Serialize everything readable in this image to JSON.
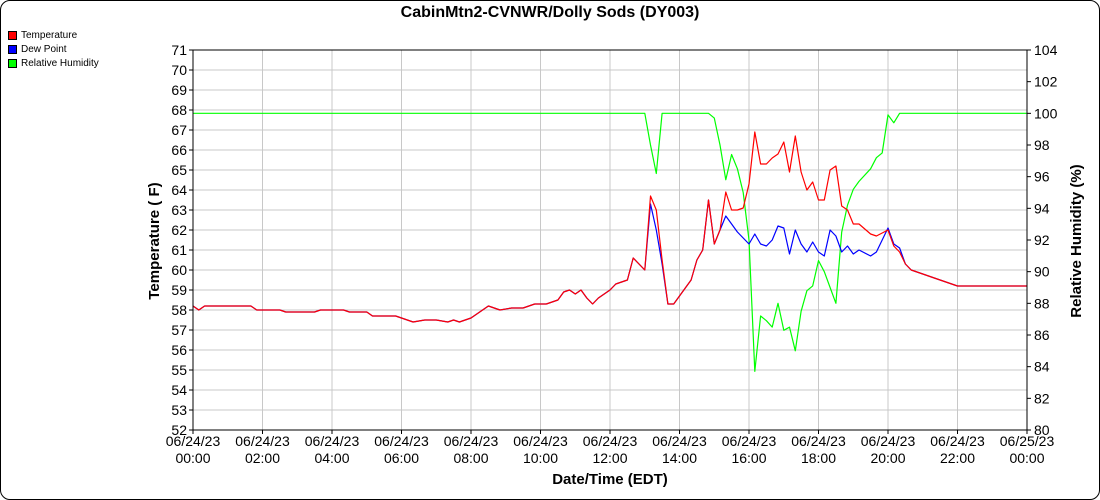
{
  "chart_data": {
    "type": "line",
    "title": "CabinMtn2-CVNWR/Dolly Sods (DY003)",
    "xlabel": "Date/Time (EDT)",
    "ylabel": "Temperature ( F)",
    "y2label": "Relative Humidity (%)",
    "ylim": [
      52,
      71
    ],
    "y2lim": [
      80,
      104
    ],
    "xlim": [
      "06/24/23 00:00",
      "06/25/23 00:00"
    ],
    "grid": true,
    "legend_position": "top-left",
    "x_ticks": [
      [
        "06/24/23",
        "00:00"
      ],
      [
        "06/24/23",
        "02:00"
      ],
      [
        "06/24/23",
        "04:00"
      ],
      [
        "06/24/23",
        "06:00"
      ],
      [
        "06/24/23",
        "08:00"
      ],
      [
        "06/24/23",
        "10:00"
      ],
      [
        "06/24/23",
        "12:00"
      ],
      [
        "06/24/23",
        "14:00"
      ],
      [
        "06/24/23",
        "16:00"
      ],
      [
        "06/24/23",
        "18:00"
      ],
      [
        "06/24/23",
        "20:00"
      ],
      [
        "06/24/23",
        "22:00"
      ],
      [
        "06/25/23",
        "00:00"
      ]
    ],
    "y_ticks": [
      52,
      53,
      54,
      55,
      56,
      57,
      58,
      59,
      60,
      61,
      62,
      63,
      64,
      65,
      66,
      67,
      68,
      69,
      70,
      71
    ],
    "y2_ticks": [
      80,
      82,
      84,
      86,
      88,
      90,
      92,
      94,
      96,
      98,
      100,
      102,
      104
    ],
    "series": [
      {
        "name": "Temperature",
        "color": "#ff0000",
        "axis": "left",
        "points": [
          [
            "06/24/23 00:00",
            58.2
          ],
          [
            "06/24/23 00:10",
            58.0
          ],
          [
            "06/24/23 00:20",
            58.2
          ],
          [
            "06/24/23 01:00",
            58.2
          ],
          [
            "06/24/23 01:40",
            58.2
          ],
          [
            "06/24/23 01:50",
            58.0
          ],
          [
            "06/24/23 02:30",
            58.0
          ],
          [
            "06/24/23 02:40",
            57.9
          ],
          [
            "06/24/23 03:30",
            57.9
          ],
          [
            "06/24/23 03:40",
            58.0
          ],
          [
            "06/24/23 04:20",
            58.0
          ],
          [
            "06/24/23 04:30",
            57.9
          ],
          [
            "06/24/23 05:00",
            57.9
          ],
          [
            "06/24/23 05:10",
            57.7
          ],
          [
            "06/24/23 05:50",
            57.7
          ],
          [
            "06/24/23 06:00",
            57.6
          ],
          [
            "06/24/23 06:20",
            57.4
          ],
          [
            "06/24/23 06:40",
            57.5
          ],
          [
            "06/24/23 07:00",
            57.5
          ],
          [
            "06/24/23 07:20",
            57.4
          ],
          [
            "06/24/23 07:30",
            57.5
          ],
          [
            "06/24/23 07:40",
            57.4
          ],
          [
            "06/24/23 08:00",
            57.6
          ],
          [
            "06/24/23 08:20",
            58.0
          ],
          [
            "06/24/23 08:30",
            58.2
          ],
          [
            "06/24/23 08:50",
            58.0
          ],
          [
            "06/24/23 09:10",
            58.1
          ],
          [
            "06/24/23 09:30",
            58.1
          ],
          [
            "06/24/23 09:50",
            58.3
          ],
          [
            "06/24/23 10:10",
            58.3
          ],
          [
            "06/24/23 10:30",
            58.5
          ],
          [
            "06/24/23 10:40",
            58.9
          ],
          [
            "06/24/23 10:50",
            59.0
          ],
          [
            "06/24/23 11:00",
            58.8
          ],
          [
            "06/24/23 11:10",
            59.0
          ],
          [
            "06/24/23 11:20",
            58.6
          ],
          [
            "06/24/23 11:30",
            58.3
          ],
          [
            "06/24/23 11:40",
            58.6
          ],
          [
            "06/24/23 12:00",
            59.0
          ],
          [
            "06/24/23 12:10",
            59.3
          ],
          [
            "06/24/23 12:30",
            59.5
          ],
          [
            "06/24/23 12:40",
            60.6
          ],
          [
            "06/24/23 13:00",
            60.0
          ],
          [
            "06/24/23 13:10",
            63.7
          ],
          [
            "06/24/23 13:20",
            63.0
          ],
          [
            "06/24/23 13:30",
            60.5
          ],
          [
            "06/24/23 13:40",
            58.3
          ],
          [
            "06/24/23 13:50",
            58.3
          ],
          [
            "06/24/23 14:00",
            58.7
          ],
          [
            "06/24/23 14:10",
            59.1
          ],
          [
            "06/24/23 14:20",
            59.5
          ],
          [
            "06/24/23 14:30",
            60.5
          ],
          [
            "06/24/23 14:40",
            61.0
          ],
          [
            "06/24/23 14:50",
            63.5
          ],
          [
            "06/24/23 15:00",
            61.3
          ],
          [
            "06/24/23 15:10",
            62.0
          ],
          [
            "06/24/23 15:20",
            63.9
          ],
          [
            "06/24/23 15:30",
            63.0
          ],
          [
            "06/24/23 15:40",
            63.0
          ],
          [
            "06/24/23 15:50",
            63.1
          ],
          [
            "06/24/23 16:00",
            64.3
          ],
          [
            "06/24/23 16:10",
            66.9
          ],
          [
            "06/24/23 16:20",
            65.3
          ],
          [
            "06/24/23 16:30",
            65.3
          ],
          [
            "06/24/23 16:40",
            65.6
          ],
          [
            "06/24/23 16:50",
            65.8
          ],
          [
            "06/24/23 17:00",
            66.4
          ],
          [
            "06/24/23 17:10",
            64.9
          ],
          [
            "06/24/23 17:20",
            66.7
          ],
          [
            "06/24/23 17:30",
            64.9
          ],
          [
            "06/24/23 17:40",
            64.0
          ],
          [
            "06/24/23 17:50",
            64.4
          ],
          [
            "06/24/23 18:00",
            63.5
          ],
          [
            "06/24/23 18:10",
            63.5
          ],
          [
            "06/24/23 18:20",
            65.0
          ],
          [
            "06/24/23 18:30",
            65.2
          ],
          [
            "06/24/23 18:40",
            63.2
          ],
          [
            "06/24/23 18:50",
            63.0
          ],
          [
            "06/24/23 19:00",
            62.3
          ],
          [
            "06/24/23 19:10",
            62.3
          ],
          [
            "06/24/23 19:30",
            61.8
          ],
          [
            "06/24/23 19:40",
            61.7
          ],
          [
            "06/24/23 20:00",
            62.0
          ],
          [
            "06/24/23 20:10",
            61.2
          ],
          [
            "06/24/23 20:20",
            60.9
          ],
          [
            "06/24/23 20:30",
            60.3
          ],
          [
            "06/24/23 20:40",
            60.0
          ],
          [
            "06/24/23 21:00",
            59.8
          ],
          [
            "06/24/23 21:20",
            59.6
          ],
          [
            "06/24/23 21:40",
            59.4
          ],
          [
            "06/24/23 22:00",
            59.2
          ],
          [
            "06/25/23 00:00",
            59.2
          ]
        ]
      },
      {
        "name": "Dew Point",
        "color": "#0000ff",
        "axis": "left",
        "points": [
          [
            "06/24/23 00:00",
            58.2
          ],
          [
            "06/24/23 00:10",
            58.0
          ],
          [
            "06/24/23 00:20",
            58.2
          ],
          [
            "06/24/23 01:00",
            58.2
          ],
          [
            "06/24/23 01:40",
            58.2
          ],
          [
            "06/24/23 01:50",
            58.0
          ],
          [
            "06/24/23 02:30",
            58.0
          ],
          [
            "06/24/23 02:40",
            57.9
          ],
          [
            "06/24/23 03:30",
            57.9
          ],
          [
            "06/24/23 03:40",
            58.0
          ],
          [
            "06/24/23 04:20",
            58.0
          ],
          [
            "06/24/23 04:30",
            57.9
          ],
          [
            "06/24/23 05:00",
            57.9
          ],
          [
            "06/24/23 05:10",
            57.7
          ],
          [
            "06/24/23 05:50",
            57.7
          ],
          [
            "06/24/23 06:00",
            57.6
          ],
          [
            "06/24/23 06:20",
            57.4
          ],
          [
            "06/24/23 06:40",
            57.5
          ],
          [
            "06/24/23 07:00",
            57.5
          ],
          [
            "06/24/23 07:20",
            57.4
          ],
          [
            "06/24/23 07:30",
            57.5
          ],
          [
            "06/24/23 07:40",
            57.4
          ],
          [
            "06/24/23 08:00",
            57.6
          ],
          [
            "06/24/23 08:20",
            58.0
          ],
          [
            "06/24/23 08:30",
            58.2
          ],
          [
            "06/24/23 08:50",
            58.0
          ],
          [
            "06/24/23 09:10",
            58.1
          ],
          [
            "06/24/23 09:30",
            58.1
          ],
          [
            "06/24/23 09:50",
            58.3
          ],
          [
            "06/24/23 10:10",
            58.3
          ],
          [
            "06/24/23 10:30",
            58.5
          ],
          [
            "06/24/23 10:40",
            58.9
          ],
          [
            "06/24/23 10:50",
            59.0
          ],
          [
            "06/24/23 11:00",
            58.8
          ],
          [
            "06/24/23 11:10",
            59.0
          ],
          [
            "06/24/23 11:20",
            58.6
          ],
          [
            "06/24/23 11:30",
            58.3
          ],
          [
            "06/24/23 11:40",
            58.6
          ],
          [
            "06/24/23 12:00",
            59.0
          ],
          [
            "06/24/23 12:10",
            59.3
          ],
          [
            "06/24/23 12:30",
            59.5
          ],
          [
            "06/24/23 12:40",
            60.6
          ],
          [
            "06/24/23 13:00",
            60.0
          ],
          [
            "06/24/23 13:10",
            63.3
          ],
          [
            "06/24/23 13:20",
            62.0
          ],
          [
            "06/24/23 13:30",
            60.3
          ],
          [
            "06/24/23 13:40",
            58.3
          ],
          [
            "06/24/23 13:50",
            58.3
          ],
          [
            "06/24/23 14:00",
            58.7
          ],
          [
            "06/24/23 14:10",
            59.1
          ],
          [
            "06/24/23 14:20",
            59.5
          ],
          [
            "06/24/23 14:30",
            60.5
          ],
          [
            "06/24/23 14:40",
            61.0
          ],
          [
            "06/24/23 14:50",
            63.5
          ],
          [
            "06/24/23 15:00",
            61.3
          ],
          [
            "06/24/23 15:10",
            62.0
          ],
          [
            "06/24/23 15:20",
            62.7
          ],
          [
            "06/24/23 15:30",
            62.3
          ],
          [
            "06/24/23 15:40",
            61.9
          ],
          [
            "06/24/23 15:50",
            61.6
          ],
          [
            "06/24/23 16:00",
            61.3
          ],
          [
            "06/24/23 16:10",
            61.8
          ],
          [
            "06/24/23 16:20",
            61.3
          ],
          [
            "06/24/23 16:30",
            61.2
          ],
          [
            "06/24/23 16:40",
            61.5
          ],
          [
            "06/24/23 16:50",
            62.2
          ],
          [
            "06/24/23 17:00",
            62.1
          ],
          [
            "06/24/23 17:10",
            60.8
          ],
          [
            "06/24/23 17:20",
            62.0
          ],
          [
            "06/24/23 17:30",
            61.3
          ],
          [
            "06/24/23 17:40",
            60.9
          ],
          [
            "06/24/23 17:50",
            61.4
          ],
          [
            "06/24/23 18:00",
            60.9
          ],
          [
            "06/24/23 18:10",
            60.7
          ],
          [
            "06/24/23 18:20",
            62.0
          ],
          [
            "06/24/23 18:30",
            61.7
          ],
          [
            "06/24/23 18:40",
            60.9
          ],
          [
            "06/24/23 18:50",
            61.2
          ],
          [
            "06/24/23 19:00",
            60.8
          ],
          [
            "06/24/23 19:10",
            61.0
          ],
          [
            "06/24/23 19:30",
            60.7
          ],
          [
            "06/24/23 19:40",
            60.9
          ],
          [
            "06/24/23 20:00",
            62.1
          ],
          [
            "06/24/23 20:10",
            61.3
          ],
          [
            "06/24/23 20:20",
            61.1
          ],
          [
            "06/24/23 20:30",
            60.3
          ],
          [
            "06/24/23 20:40",
            60.0
          ],
          [
            "06/24/23 21:00",
            59.8
          ],
          [
            "06/24/23 21:20",
            59.6
          ],
          [
            "06/24/23 21:40",
            59.4
          ],
          [
            "06/24/23 22:00",
            59.2
          ],
          [
            "06/25/23 00:00",
            59.2
          ]
        ]
      },
      {
        "name": "Relative Humidity",
        "color": "#00ff00",
        "axis": "right",
        "points": [
          [
            "06/24/23 00:00",
            100
          ],
          [
            "06/24/23 13:00",
            100
          ],
          [
            "06/24/23 13:10",
            98
          ],
          [
            "06/24/23 13:20",
            96.2
          ],
          [
            "06/24/23 13:30",
            100
          ],
          [
            "06/24/23 14:50",
            100
          ],
          [
            "06/24/23 15:00",
            99.7
          ],
          [
            "06/24/23 15:10",
            98
          ],
          [
            "06/24/23 15:20",
            95.8
          ],
          [
            "06/24/23 15:30",
            97.4
          ],
          [
            "06/24/23 15:40",
            96.5
          ],
          [
            "06/24/23 15:50",
            95
          ],
          [
            "06/24/23 16:00",
            92
          ],
          [
            "06/24/23 16:10",
            83.7
          ],
          [
            "06/24/23 16:20",
            87.2
          ],
          [
            "06/24/23 16:30",
            86.9
          ],
          [
            "06/24/23 16:40",
            86.5
          ],
          [
            "06/24/23 16:50",
            88
          ],
          [
            "06/24/23 17:00",
            86.3
          ],
          [
            "06/24/23 17:10",
            86.5
          ],
          [
            "06/24/23 17:20",
            85
          ],
          [
            "06/24/23 17:30",
            87.5
          ],
          [
            "06/24/23 17:40",
            88.8
          ],
          [
            "06/24/23 17:50",
            89.1
          ],
          [
            "06/24/23 18:00",
            90.7
          ],
          [
            "06/24/23 18:10",
            90
          ],
          [
            "06/24/23 18:20",
            89
          ],
          [
            "06/24/23 18:30",
            88
          ],
          [
            "06/24/23 18:40",
            92.5
          ],
          [
            "06/24/23 18:50",
            94.2
          ],
          [
            "06/24/23 19:00",
            95.2
          ],
          [
            "06/24/23 19:10",
            95.7
          ],
          [
            "06/24/23 19:30",
            96.5
          ],
          [
            "06/24/23 19:40",
            97.2
          ],
          [
            "06/24/23 19:50",
            97.5
          ],
          [
            "06/24/23 20:00",
            99.9
          ],
          [
            "06/24/23 20:10",
            99.4
          ],
          [
            "06/24/23 20:20",
            100
          ],
          [
            "06/25/23 00:00",
            100
          ]
        ]
      }
    ]
  }
}
